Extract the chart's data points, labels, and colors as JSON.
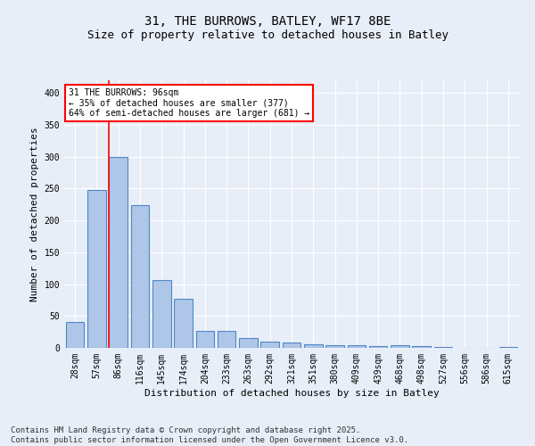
{
  "title1": "31, THE BURROWS, BATLEY, WF17 8BE",
  "title2": "Size of property relative to detached houses in Batley",
  "xlabel": "Distribution of detached houses by size in Batley",
  "ylabel": "Number of detached properties",
  "categories": [
    "28sqm",
    "57sqm",
    "86sqm",
    "116sqm",
    "145sqm",
    "174sqm",
    "204sqm",
    "233sqm",
    "263sqm",
    "292sqm",
    "321sqm",
    "351sqm",
    "380sqm",
    "409sqm",
    "439sqm",
    "468sqm",
    "498sqm",
    "527sqm",
    "556sqm",
    "586sqm",
    "615sqm"
  ],
  "values": [
    40,
    248,
    300,
    224,
    106,
    77,
    27,
    27,
    16,
    10,
    9,
    5,
    4,
    4,
    3,
    4,
    3,
    2,
    0,
    0,
    2
  ],
  "bar_color": "#aec6e8",
  "bar_edge_color": "#4f87c4",
  "background_color": "#e8eef8",
  "grid_color": "#ffffff",
  "vline_color": "red",
  "annotation_text": "31 THE BURROWS: 96sqm\n← 35% of detached houses are smaller (377)\n64% of semi-detached houses are larger (681) →",
  "annotation_box_color": "white",
  "annotation_box_edge_color": "red",
  "ylim": [
    0,
    420
  ],
  "yticks": [
    0,
    50,
    100,
    150,
    200,
    250,
    300,
    350,
    400
  ],
  "footer1": "Contains HM Land Registry data © Crown copyright and database right 2025.",
  "footer2": "Contains public sector information licensed under the Open Government Licence v3.0.",
  "title1_fontsize": 10,
  "title2_fontsize": 9,
  "xlabel_fontsize": 8,
  "ylabel_fontsize": 8,
  "tick_fontsize": 7,
  "annot_fontsize": 7,
  "footer_fontsize": 6.5
}
